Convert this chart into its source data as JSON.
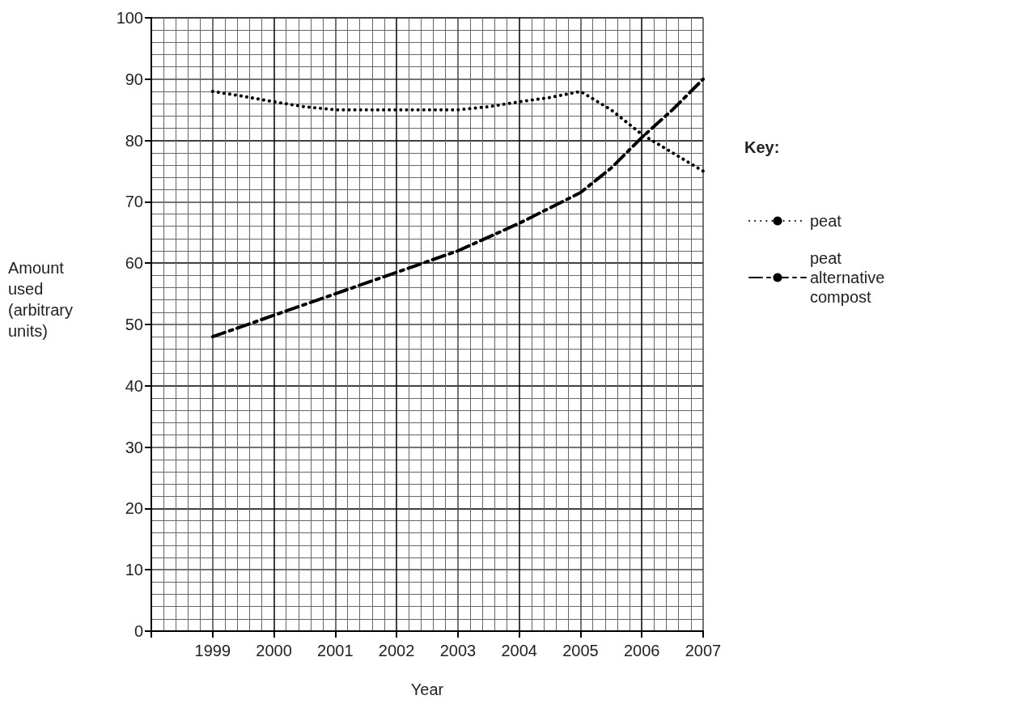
{
  "chart_data": {
    "type": "line",
    "xlabel": "Year",
    "ylabel": "Amount used (arbitrary units)",
    "legend_title": "Key:",
    "legend": "right",
    "grid": true,
    "marker": "none",
    "xlim": [
      1998,
      2007
    ],
    "xticks": [
      {
        "value": 1998,
        "label": null
      },
      1999,
      2000,
      2001,
      2002,
      2003,
      2004,
      2005,
      2006,
      2007
    ],
    "ylim": [
      0,
      100
    ],
    "yticks": [
      0,
      10,
      20,
      30,
      40,
      50,
      60,
      70,
      80,
      90,
      100
    ],
    "series": [
      {
        "name": "peat",
        "color": "#000000",
        "line_style": "dotted",
        "x": [
          1999,
          1999.5,
          2000,
          2000.5,
          2001,
          2002,
          2003,
          2003.5,
          2004,
          2004.5,
          2005,
          2005.5,
          2006,
          2006.5,
          2007
        ],
        "values": [
          88,
          87.2,
          86.3,
          85.5,
          85,
          85,
          85,
          85.5,
          86.3,
          87,
          88,
          85,
          81,
          78,
          75
        ]
      },
      {
        "name": "peat alternative compost",
        "color": "#000000",
        "line_style": "dashed",
        "x": [
          1999,
          2000,
          2001,
          2002,
          2003,
          2004,
          2005,
          2005.5,
          2006,
          2006.5,
          2007
        ],
        "values": [
          48,
          51.5,
          55,
          58.5,
          62,
          66.5,
          71.5,
          75.5,
          80.5,
          85,
          90
        ]
      }
    ]
  }
}
